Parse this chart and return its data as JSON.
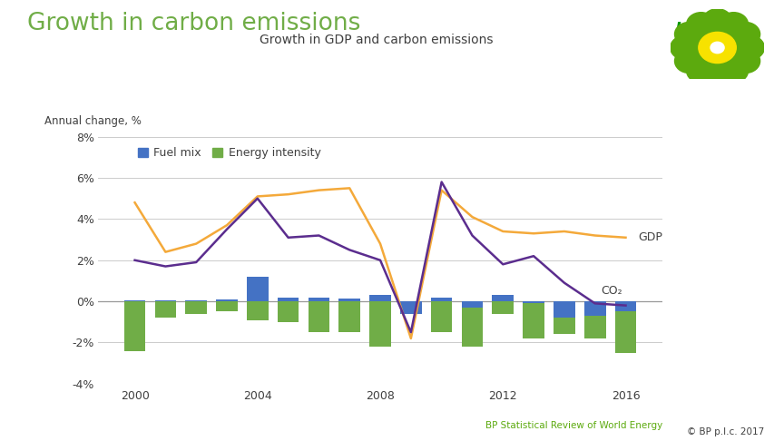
{
  "title_main": "Growth in carbon emissions",
  "title_sub": "Growth in GDP and carbon emissions",
  "ylabel": "Annual change, %",
  "footer_left": "BP Statistical Review of World Energy",
  "footer_right": "© BP p.l.c. 2017",
  "years": [
    2000,
    2001,
    2002,
    2003,
    2004,
    2005,
    2006,
    2007,
    2008,
    2009,
    2010,
    2011,
    2012,
    2013,
    2014,
    2015,
    2016
  ],
  "gdp": [
    4.8,
    2.4,
    2.8,
    3.7,
    5.1,
    5.2,
    5.4,
    5.5,
    2.8,
    -1.8,
    5.4,
    4.1,
    3.4,
    3.3,
    3.4,
    3.2,
    3.1
  ],
  "co2": [
    2.0,
    1.7,
    1.9,
    3.5,
    5.0,
    3.1,
    3.2,
    2.5,
    2.0,
    -1.5,
    5.8,
    3.2,
    1.8,
    2.2,
    0.9,
    -0.1,
    -0.2
  ],
  "fuel_mix": [
    0.05,
    0.05,
    0.05,
    0.1,
    1.2,
    0.2,
    0.2,
    0.15,
    0.3,
    -0.6,
    0.2,
    -0.3,
    0.3,
    -0.1,
    -0.8,
    -0.7,
    -0.5
  ],
  "energy_intensity": [
    -2.4,
    -0.8,
    -0.6,
    -0.5,
    -0.9,
    -1.0,
    -1.5,
    -1.5,
    -2.2,
    -0.5,
    -1.5,
    -2.2,
    -0.6,
    -1.8,
    -1.6,
    -1.8,
    -2.5
  ],
  "gdp_color": "#f4a93a",
  "co2_color": "#5b2d8e",
  "fuel_mix_color": "#4472c4",
  "energy_intensity_color": "#70ad47",
  "title_main_color": "#70ad47",
  "title_sub_color": "#404040",
  "footer_color": "#5caa0e",
  "footer_right_color": "#404040",
  "bg_color": "#ffffff",
  "grid_color": "#cccccc",
  "zero_line_color": "#999999",
  "ylim": [
    -4,
    8
  ],
  "yticks": [
    -4,
    -2,
    0,
    2,
    4,
    6,
    8
  ],
  "xticks": [
    2000,
    2004,
    2008,
    2012,
    2016
  ],
  "xlim": [
    1998.8,
    2017.2
  ]
}
